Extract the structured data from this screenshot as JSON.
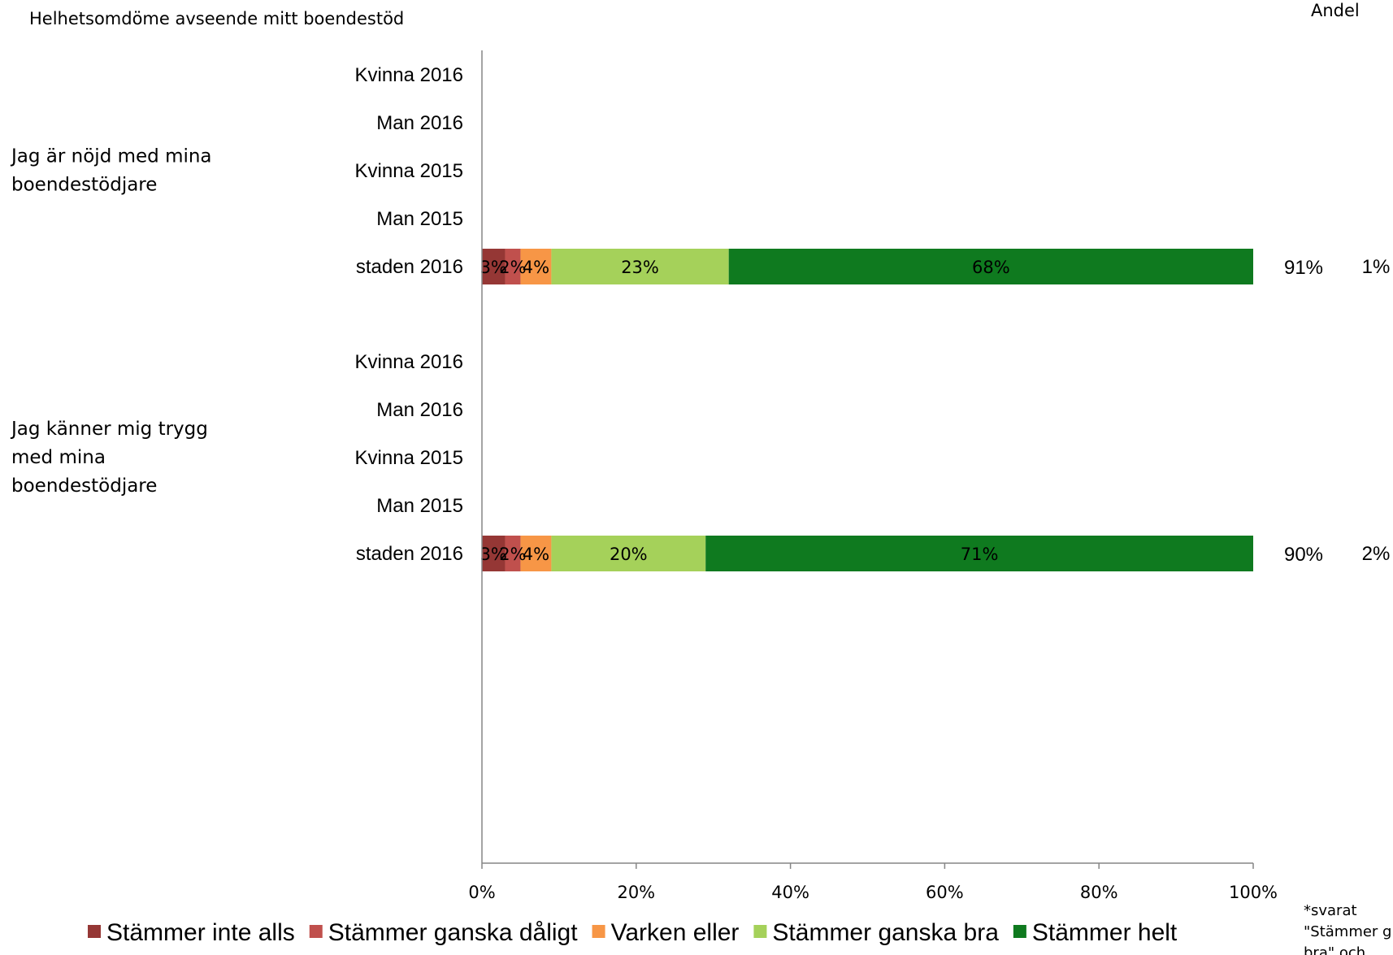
{
  "title": "Helhetsomdöme avseende mitt boendestöd",
  "andel_header": "Andel",
  "footnote_lines": [
    "*svarat",
    "\"Stämmer g",
    "bra\" och"
  ],
  "chart_data": {
    "type": "bar",
    "orientation": "horizontal",
    "stacked": true,
    "xlim": [
      0,
      100
    ],
    "x_ticks": [
      "0%",
      "20%",
      "40%",
      "60%",
      "80%",
      "100%"
    ],
    "groups": [
      {
        "label_lines": [
          "Jag är nöjd med mina",
          "boendestödjare"
        ],
        "rows": [
          {
            "label": "Kvinna 2016",
            "values": null
          },
          {
            "label": "Man 2016",
            "values": null
          },
          {
            "label": "Kvinna 2015",
            "values": null
          },
          {
            "label": "Man 2015",
            "values": null
          },
          {
            "label": "staden 2016",
            "values": [
              3,
              2,
              4,
              23,
              68
            ],
            "value_labels": [
              "3%",
              "2%",
              "4%",
              "23%",
              "68%"
            ],
            "andel": "91%",
            "extra": "1%"
          }
        ]
      },
      {
        "label_lines": [
          "Jag känner mig trygg",
          "med mina",
          "boendestödjare"
        ],
        "rows": [
          {
            "label": "Kvinna 2016",
            "values": null
          },
          {
            "label": "Man 2016",
            "values": null
          },
          {
            "label": "Kvinna 2015",
            "values": null
          },
          {
            "label": "Man 2015",
            "values": null
          },
          {
            "label": "staden 2016",
            "values": [
              3,
              2,
              4,
              20,
              71
            ],
            "value_labels": [
              "3%",
              "2%",
              "4%",
              "20%",
              "71%"
            ],
            "andel": "90%",
            "extra": "2%"
          }
        ]
      }
    ],
    "series": [
      {
        "name": "Stämmer inte alls",
        "color": "#953735"
      },
      {
        "name": "Stämmer ganska dåligt",
        "color": "#C0504D"
      },
      {
        "name": "Varken eller",
        "color": "#F79646"
      },
      {
        "name": "Stämmer ganska bra",
        "color": "#A5D15A"
      },
      {
        "name": "Stämmer helt",
        "color": "#0F7A1F"
      }
    ],
    "legend_position": "bottom"
  }
}
